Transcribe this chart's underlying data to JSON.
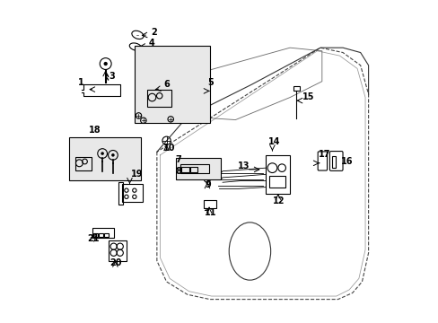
{
  "background_color": "#ffffff",
  "line_color": "#000000",
  "box_fill_color": "#e8e8e8"
}
